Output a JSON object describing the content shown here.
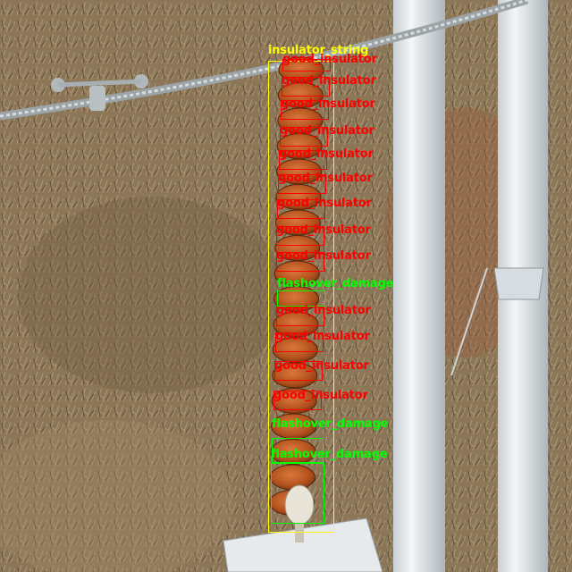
{
  "colors": {
    "insulator_string": "#ffff00",
    "good_insulator": "#ff0000",
    "flashover_damage": "#00ff00",
    "ground": "#8a7556",
    "tower": "#e4e8ea",
    "insulator_disc": "#b8541f"
  },
  "labels": {
    "string": "insulator_string",
    "good": "good_insulator",
    "flashover": "flashover_damage"
  },
  "detections": [
    {
      "cls": "string"
    },
    {
      "cls": "good"
    },
    {
      "cls": "good"
    },
    {
      "cls": "good"
    },
    {
      "cls": "good"
    },
    {
      "cls": "good"
    },
    {
      "cls": "good"
    },
    {
      "cls": "good"
    },
    {
      "cls": "good"
    },
    {
      "cls": "good"
    },
    {
      "cls": "flashover"
    },
    {
      "cls": "good"
    },
    {
      "cls": "good"
    },
    {
      "cls": "good"
    },
    {
      "cls": "good"
    },
    {
      "cls": "flashover"
    },
    {
      "cls": "flashover"
    }
  ]
}
